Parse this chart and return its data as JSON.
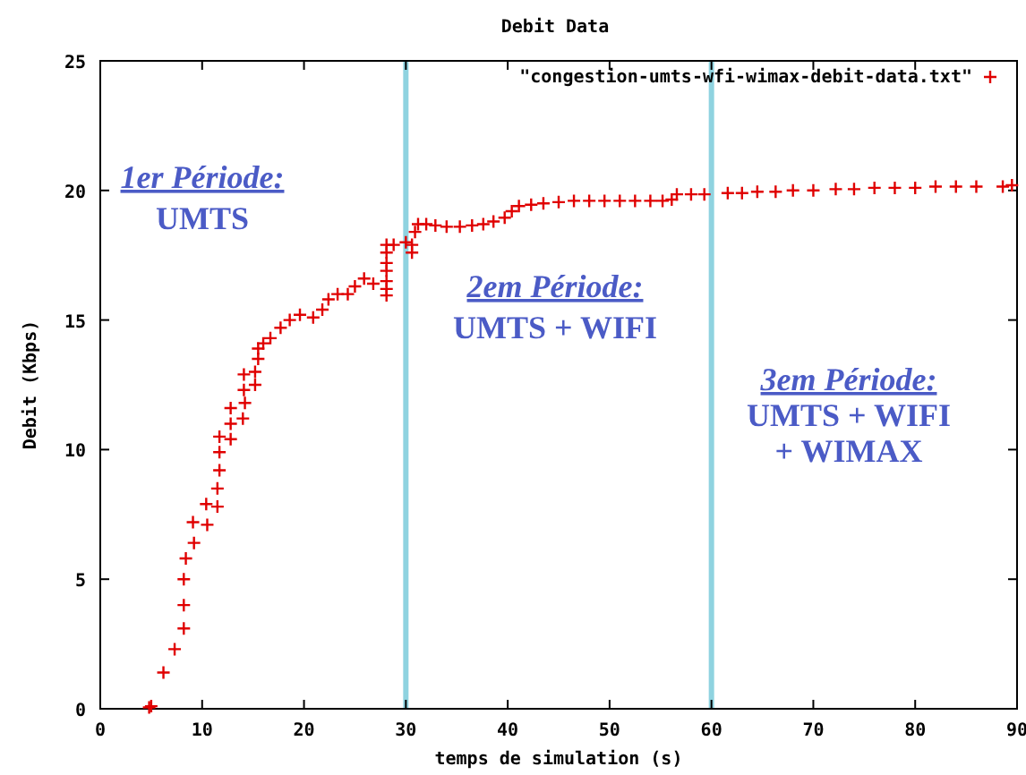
{
  "chart_data": {
    "type": "scatter",
    "title": "Debit Data",
    "xlabel": "temps de simulation (s)",
    "ylabel": "Debit (Kbps)",
    "xlim": [
      0,
      90
    ],
    "xticks": [
      0,
      10,
      20,
      30,
      40,
      50,
      60,
      70,
      80,
      90
    ],
    "ylim": [
      0,
      25
    ],
    "yticks": [
      0,
      5,
      10,
      15,
      20,
      25
    ],
    "grid": false,
    "legend": "top right",
    "marker": "cross",
    "series": [
      {
        "name": "\"congestion-umts-wfi-wimax-debit-data.txt\"",
        "color": "#e00000",
        "x": [
          4.8,
          5.0,
          6.2,
          7.3,
          8.2,
          8.2,
          8.2,
          8.4,
          9.2,
          9.1,
          10.5,
          10.4,
          11.5,
          11.5,
          11.7,
          11.7,
          11.7,
          12.8,
          12.8,
          12.8,
          14.0,
          14.2,
          14.1,
          14.1,
          15.2,
          15.2,
          15.5,
          15.5,
          16.0,
          16.7,
          17.7,
          18.6,
          19.6,
          20.9,
          21.8,
          22.4,
          23.3,
          24.3,
          25.0,
          25.9,
          26.8,
          28.1,
          28.1,
          28.1,
          28.1,
          28.1,
          28.1,
          28.1,
          28.8,
          30.0,
          30.6,
          30.6,
          30.9,
          31.2,
          32.0,
          32.9,
          34.0,
          35.3,
          36.5,
          37.6,
          38.6,
          39.7,
          40.4,
          41.1,
          42.3,
          43.5,
          45.0,
          46.5,
          48.0,
          49.5,
          51.0,
          52.5,
          54.0,
          55.2,
          56.1,
          56.6,
          58.0,
          59.3,
          61.6,
          63.0,
          64.5,
          66.3,
          68.0,
          70.0,
          72.2,
          74.0,
          76.0,
          78.0,
          80.0,
          82.0,
          84.0,
          86.0,
          88.6,
          89.5
        ],
        "values": [
          0.05,
          0.1,
          1.4,
          2.3,
          3.1,
          4.0,
          5.0,
          5.8,
          6.4,
          7.2,
          7.1,
          7.9,
          7.8,
          8.5,
          9.2,
          9.9,
          10.5,
          10.4,
          11.0,
          11.6,
          11.2,
          11.8,
          12.3,
          12.9,
          12.5,
          13.0,
          13.5,
          13.9,
          14.1,
          14.3,
          14.7,
          15.0,
          15.2,
          15.1,
          15.4,
          15.8,
          16.0,
          16.0,
          16.3,
          16.6,
          16.4,
          15.95,
          16.2,
          16.5,
          16.9,
          17.2,
          17.6,
          17.9,
          17.9,
          18.0,
          17.9,
          17.6,
          18.4,
          18.7,
          18.7,
          18.65,
          18.6,
          18.6,
          18.65,
          18.7,
          18.8,
          18.95,
          19.2,
          19.4,
          19.45,
          19.5,
          19.55,
          19.6,
          19.6,
          19.6,
          19.6,
          19.6,
          19.6,
          19.6,
          19.65,
          19.85,
          19.85,
          19.85,
          19.9,
          19.9,
          19.95,
          19.95,
          20.0,
          20.0,
          20.05,
          20.05,
          20.1,
          20.1,
          20.1,
          20.15,
          20.15,
          20.15,
          20.15,
          20.2
        ]
      }
    ],
    "ref_lines": [
      {
        "axis": "x",
        "value": 30,
        "color": "#8fd3e0"
      },
      {
        "axis": "x",
        "value": 60,
        "color": "#8fd3e0"
      }
    ],
    "annotations": [
      "1er Période:",
      "UMTS",
      "2em Période:",
      "UMTS + WIFI",
      "3em Période:",
      "UMTS + WIFI",
      "+ WIMAX"
    ]
  }
}
